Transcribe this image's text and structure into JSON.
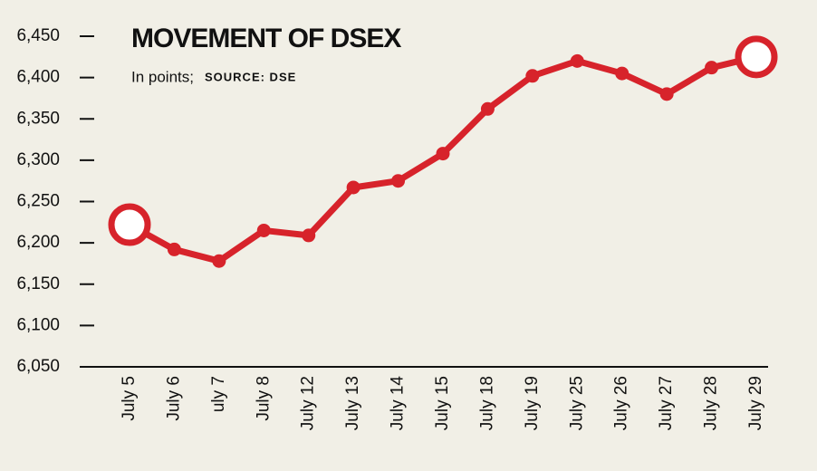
{
  "chart_data": {
    "type": "line",
    "title": "MOVEMENT OF DSEX",
    "subtitle": "In points;",
    "source": "SOURCE: DSE",
    "categories": [
      "July 5",
      "July 6",
      "uly 7",
      "July 8",
      "July 12",
      "July 13",
      "July 14",
      "July 15",
      "July 18",
      "July 19",
      "July 25",
      "July 26",
      "July 27",
      "July 28",
      "July 29"
    ],
    "series": [
      {
        "color": "#d7232b",
        "values": [
          6222,
          6192,
          6178,
          6215,
          6209,
          6267,
          6275,
          6308,
          6362,
          6402,
          6420,
          6405,
          6380,
          6412,
          6425
        ]
      }
    ],
    "ylim": [
      6050,
      6450
    ],
    "yticks": [
      {
        "value": 6050,
        "label": "6,050"
      },
      {
        "value": 6100,
        "label": "6,100"
      },
      {
        "value": 6150,
        "label": "6,150"
      },
      {
        "value": 6200,
        "label": "6,200"
      },
      {
        "value": 6250,
        "label": "6,250"
      },
      {
        "value": 6300,
        "label": "6,300"
      },
      {
        "value": 6350,
        "label": "6,350"
      },
      {
        "value": 6400,
        "label": "6,400"
      },
      {
        "value": 6450,
        "label": "6,450"
      }
    ]
  }
}
